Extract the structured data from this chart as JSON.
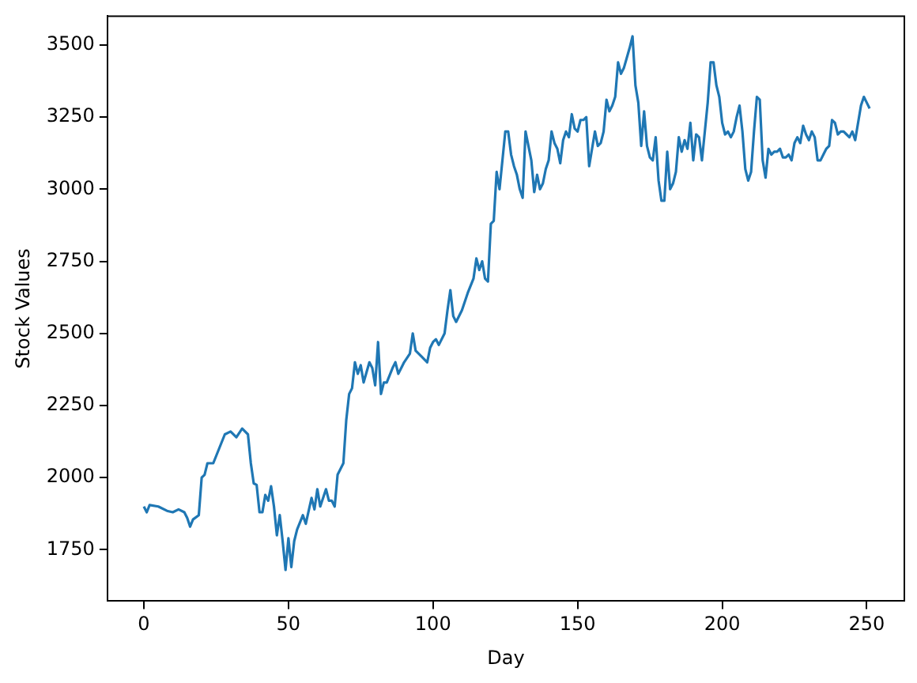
{
  "chart_data": {
    "type": "line",
    "xlabel": "Day",
    "ylabel": "Stock Values",
    "xlim": [
      -12.6,
      263
    ],
    "xticks": [
      0,
      50,
      100,
      150,
      200,
      250
    ],
    "ylim": [
      1572,
      3600
    ],
    "yticks": [
      1750,
      2000,
      2250,
      2500,
      2750,
      3000,
      3250,
      3500
    ],
    "grid": false,
    "legend": false,
    "marker": "none",
    "line_style": "solid",
    "series": [
      {
        "color": "#1f77b4",
        "x": [
          0,
          1,
          2,
          5,
          8,
          10,
          12,
          14,
          15,
          16,
          17,
          19,
          20,
          21,
          22,
          24,
          26,
          28,
          30,
          32,
          34,
          36,
          37,
          38,
          39,
          40,
          41,
          42,
          43,
          44,
          45,
          46,
          47,
          48,
          49,
          50,
          51,
          52,
          53,
          55,
          56,
          58,
          59,
          60,
          61,
          63,
          64,
          65,
          66,
          67,
          68,
          69,
          70,
          71,
          72,
          73,
          74,
          75,
          76,
          78,
          79,
          80,
          81,
          82,
          83,
          84,
          86,
          87,
          88,
          90,
          92,
          93,
          94,
          96,
          98,
          99,
          100,
          101,
          102,
          104,
          105,
          106,
          107,
          108,
          110,
          112,
          114,
          115,
          116,
          117,
          118,
          119,
          120,
          121,
          122,
          123,
          124,
          125,
          126,
          127,
          128,
          129,
          130,
          131,
          132,
          133,
          134,
          135,
          136,
          137,
          138,
          139,
          140,
          141,
          142,
          143,
          144,
          145,
          146,
          147,
          148,
          149,
          150,
          151,
          152,
          153,
          154,
          156,
          157,
          158,
          159,
          160,
          161,
          162,
          163,
          164,
          165,
          166,
          168,
          169,
          170,
          171,
          172,
          173,
          174,
          175,
          176,
          177,
          178,
          179,
          180,
          181,
          182,
          183,
          184,
          185,
          186,
          187,
          188,
          189,
          190,
          191,
          192,
          193,
          194,
          195,
          196,
          197,
          198,
          199,
          200,
          201,
          202,
          203,
          204,
          205,
          206,
          207,
          208,
          209,
          210,
          211,
          212,
          213,
          214,
          215,
          216,
          217,
          218,
          219,
          220,
          221,
          222,
          223,
          224,
          225,
          226,
          227,
          228,
          229,
          230,
          231,
          232,
          233,
          234,
          235,
          236,
          237,
          238,
          239,
          240,
          241,
          242,
          243,
          244,
          245,
          246,
          248,
          249,
          250,
          251
        ],
        "values": [
          1900,
          1880,
          1905,
          1900,
          1885,
          1880,
          1890,
          1880,
          1860,
          1830,
          1855,
          1870,
          2000,
          2010,
          2050,
          2050,
          2100,
          2150,
          2160,
          2140,
          2170,
          2150,
          2050,
          1980,
          1975,
          1880,
          1880,
          1940,
          1920,
          1970,
          1900,
          1800,
          1870,
          1780,
          1680,
          1790,
          1690,
          1780,
          1820,
          1870,
          1840,
          1930,
          1890,
          1960,
          1900,
          1960,
          1920,
          1920,
          1900,
          2010,
          2030,
          2050,
          2200,
          2290,
          2310,
          2400,
          2360,
          2390,
          2330,
          2400,
          2380,
          2320,
          2470,
          2290,
          2330,
          2330,
          2380,
          2400,
          2360,
          2400,
          2430,
          2500,
          2440,
          2420,
          2400,
          2450,
          2470,
          2480,
          2460,
          2500,
          2580,
          2650,
          2560,
          2540,
          2580,
          2640,
          2690,
          2760,
          2720,
          2750,
          2690,
          2680,
          2880,
          2890,
          3060,
          3000,
          3100,
          3200,
          3200,
          3120,
          3080,
          3050,
          3000,
          2970,
          3200,
          3150,
          3100,
          2990,
          3050,
          3000,
          3020,
          3070,
          3100,
          3200,
          3160,
          3140,
          3090,
          3170,
          3200,
          3180,
          3260,
          3210,
          3200,
          3240,
          3240,
          3250,
          3080,
          3200,
          3150,
          3160,
          3200,
          3310,
          3270,
          3290,
          3320,
          3440,
          3400,
          3420,
          3490,
          3530,
          3360,
          3300,
          3150,
          3270,
          3150,
          3110,
          3100,
          3180,
          3030,
          2960,
          2960,
          3130,
          3000,
          3020,
          3060,
          3180,
          3130,
          3170,
          3140,
          3230,
          3100,
          3190,
          3180,
          3100,
          3200,
          3300,
          3440,
          3440,
          3360,
          3320,
          3230,
          3190,
          3200,
          3180,
          3200,
          3250,
          3290,
          3200,
          3070,
          3030,
          3060,
          3200,
          3320,
          3310,
          3100,
          3040,
          3140,
          3120,
          3130,
          3130,
          3140,
          3110,
          3110,
          3120,
          3100,
          3160,
          3180,
          3160,
          3220,
          3190,
          3170,
          3200,
          3180,
          3100,
          3100,
          3120,
          3140,
          3150,
          3240,
          3230,
          3190,
          3200,
          3200,
          3190,
          3180,
          3200,
          3170,
          3290,
          3320,
          3300,
          3280
        ]
      }
    ]
  }
}
